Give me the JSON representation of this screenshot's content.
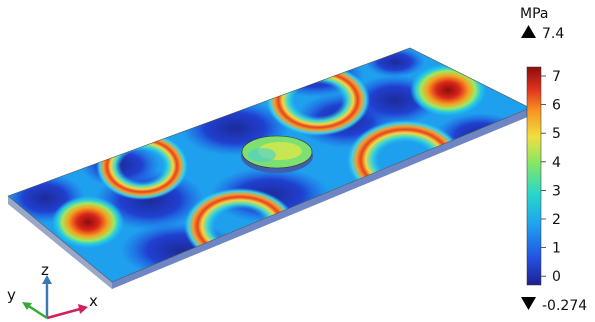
{
  "colorbar": {
    "unit": "MPa",
    "max_label": "7.4",
    "min_label": "-0.274",
    "ticks": [
      "7",
      "6",
      "5",
      "4",
      "3",
      "2",
      "1",
      "0"
    ],
    "max_marker_icon": "triangle-up-icon",
    "min_marker_icon": "triangle-down-icon",
    "colormap": [
      "#20208f",
      "#2250e0",
      "#1fa3f0",
      "#28d8c8",
      "#7fe66a",
      "#f0e040",
      "#f79420",
      "#e0301e",
      "#8a0d0d"
    ]
  },
  "triad": {
    "x_label": "x",
    "y_label": "y",
    "z_label": "z",
    "x_color": "#d4205a",
    "y_color": "#38a838",
    "z_color": "#3a78b8"
  }
}
